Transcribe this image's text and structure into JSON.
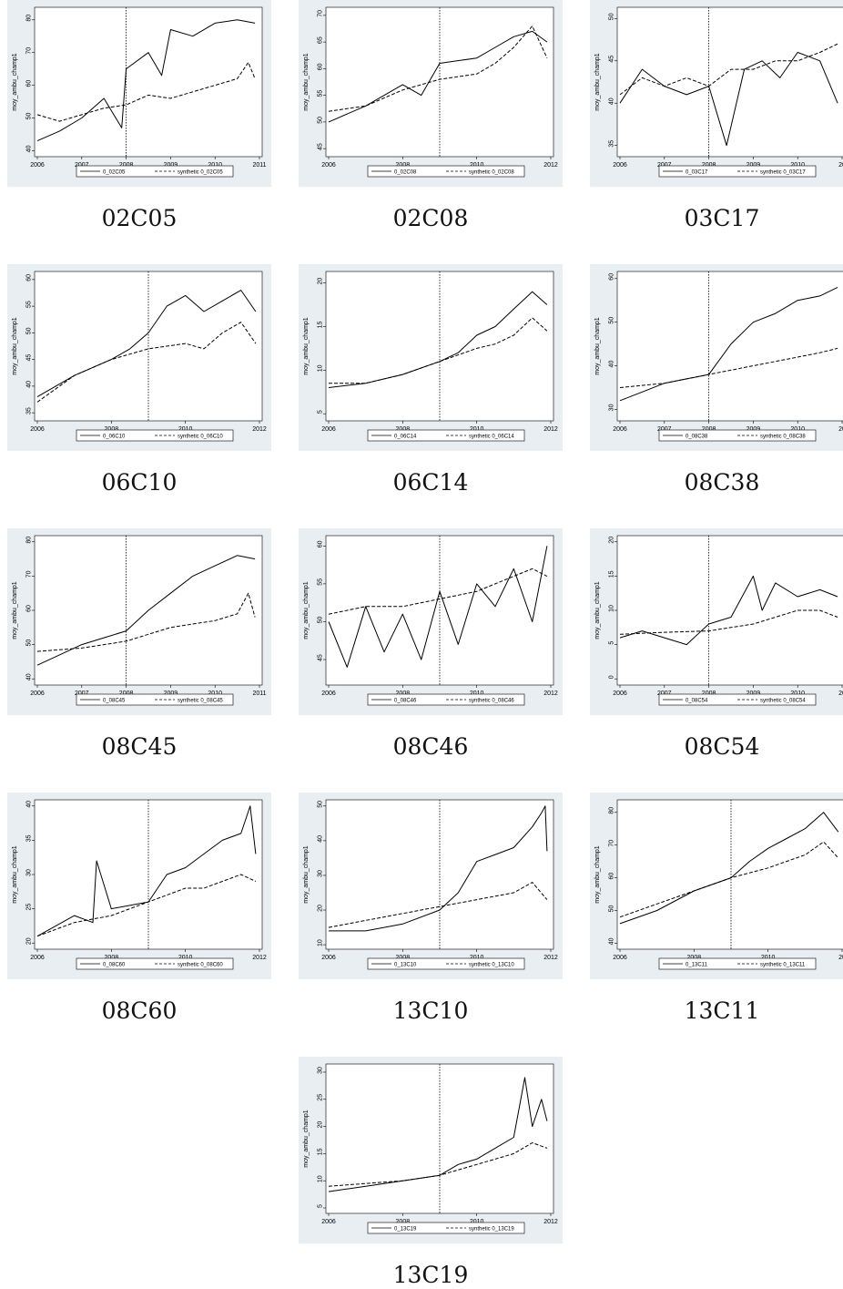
{
  "colors": {
    "panel_bg": "#e8eef2",
    "plot_bg": "#ffffff",
    "line": "#000000"
  },
  "chart_data": [
    {
      "type": "line",
      "caption": "02C05",
      "ylabel": "moy_ambu_champ1",
      "xlim": [
        2006,
        2011
      ],
      "xticks": [
        "2006",
        "2007",
        "2008",
        "2009",
        "2010",
        "2011"
      ],
      "ylim": [
        39,
        83
      ],
      "yticks": [
        "40",
        "50",
        "60",
        "70",
        "80"
      ],
      "intervention": 2008,
      "series": [
        {
          "name": "0_02C05",
          "style": "solid",
          "x": [
            2006,
            2006.5,
            2007,
            2007.5,
            2007.9,
            2008.0,
            2008.5,
            2008.8,
            2009.0,
            2009.5,
            2010,
            2010.5,
            2010.9
          ],
          "y": [
            43,
            46,
            50,
            56,
            47,
            65,
            70,
            63,
            77,
            75,
            79,
            80,
            79
          ]
        },
        {
          "name": "synthetic 0_02C05",
          "style": "dash",
          "x": [
            2006,
            2006.5,
            2007,
            2007.5,
            2008,
            2008.5,
            2009,
            2009.5,
            2010,
            2010.5,
            2010.75,
            2010.9
          ],
          "y": [
            51,
            49,
            51,
            53,
            54,
            57,
            56,
            58,
            60,
            62,
            67,
            62
          ]
        }
      ]
    },
    {
      "type": "line",
      "caption": "02C08",
      "ylabel": "moy_ambu_champ1",
      "xlim": [
        2006,
        2012
      ],
      "xticks": [
        "2006",
        "2008",
        "2010",
        "2012"
      ],
      "ylim": [
        44,
        71
      ],
      "yticks": [
        "45",
        "50",
        "55",
        "60",
        "65",
        "70"
      ],
      "intervention": 2009,
      "series": [
        {
          "name": "0_02C08",
          "style": "solid",
          "x": [
            2006,
            2007,
            2008,
            2008.5,
            2009,
            2010,
            2010.5,
            2011,
            2011.5,
            2011.9
          ],
          "y": [
            50,
            53,
            57,
            55,
            61,
            62,
            64,
            66,
            67,
            65
          ]
        },
        {
          "name": "synthetic 0_02C08",
          "style": "dash",
          "x": [
            2006,
            2007,
            2008,
            2009,
            2010,
            2010.5,
            2011,
            2011.5,
            2011.9
          ],
          "y": [
            52,
            53,
            56,
            58,
            59,
            61,
            64,
            68,
            62
          ]
        }
      ]
    },
    {
      "type": "line",
      "caption": "03C17",
      "ylabel": "moy_ambu_champ1",
      "xlim": [
        2006,
        2011
      ],
      "xticks": [
        "2006",
        "2007",
        "2008",
        "2009",
        "2010",
        "20"
      ],
      "ylim": [
        34,
        51
      ],
      "yticks": [
        "35",
        "40",
        "45",
        "50"
      ],
      "intervention": 2008,
      "series": [
        {
          "name": "0_03C17",
          "style": "solid",
          "x": [
            2006,
            2006.5,
            2007,
            2007.5,
            2008,
            2008.4,
            2008.8,
            2009.2,
            2009.6,
            2010,
            2010.5,
            2010.9
          ],
          "y": [
            40,
            44,
            42,
            41,
            42,
            35,
            44,
            45,
            43,
            46,
            45,
            40
          ]
        },
        {
          "name": "synthetic 0_03C17",
          "style": "dash",
          "x": [
            2006,
            2006.5,
            2007,
            2007.5,
            2008,
            2008.5,
            2009,
            2009.5,
            2010,
            2010.5,
            2010.9
          ],
          "y": [
            41,
            43,
            42,
            43,
            42,
            44,
            44,
            45,
            45,
            46,
            47
          ]
        }
      ]
    },
    {
      "type": "line",
      "caption": "06C10",
      "ylabel": "moy_ambu_champ1",
      "xlim": [
        2006,
        2012
      ],
      "xticks": [
        "2006",
        "2008",
        "2010",
        "2012"
      ],
      "ylim": [
        34,
        61
      ],
      "yticks": [
        "35",
        "40",
        "45",
        "50",
        "55",
        "60"
      ],
      "intervention": 2009,
      "series": [
        {
          "name": "0_06C10",
          "style": "solid",
          "x": [
            2006,
            2007,
            2008,
            2008.5,
            2009,
            2009.5,
            2010,
            2010.5,
            2011,
            2011.5,
            2011.9
          ],
          "y": [
            38,
            42,
            45,
            47,
            50,
            55,
            57,
            54,
            56,
            58,
            54
          ]
        },
        {
          "name": "synthetic 0_06C10",
          "style": "dash",
          "x": [
            2006,
            2007,
            2008,
            2009,
            2010,
            2010.5,
            2011,
            2011.5,
            2011.9
          ],
          "y": [
            37,
            42,
            45,
            47,
            48,
            47,
            50,
            52,
            48
          ]
        }
      ]
    },
    {
      "type": "line",
      "caption": "06C14",
      "ylabel": "moy_ambu_champ1",
      "xlim": [
        2006,
        2012
      ],
      "xticks": [
        "2006",
        "2008",
        "2010",
        "2012"
      ],
      "ylim": [
        4.5,
        21
      ],
      "yticks": [
        "5",
        "10",
        "15",
        "20"
      ],
      "intervention": 2009,
      "series": [
        {
          "name": "0_06C14",
          "style": "solid",
          "x": [
            2006,
            2007,
            2008,
            2009,
            2009.5,
            2010,
            2010.5,
            2011,
            2011.5,
            2011.9
          ],
          "y": [
            8,
            8.5,
            9.5,
            11,
            12,
            14,
            15,
            17,
            19,
            17.5
          ]
        },
        {
          "name": "synthetic 0_06C14",
          "style": "dash",
          "x": [
            2006,
            2007,
            2008,
            2009,
            2010,
            2010.5,
            2011,
            2011.5,
            2011.9
          ],
          "y": [
            8.5,
            8.5,
            9.5,
            11,
            12.5,
            13,
            14,
            16,
            14.5
          ]
        }
      ]
    },
    {
      "type": "line",
      "caption": "08C38",
      "ylabel": "moy_ambu_champ1",
      "xlim": [
        2006,
        2011
      ],
      "xticks": [
        "2006",
        "2007",
        "2008",
        "2009",
        "2010",
        "20"
      ],
      "ylim": [
        28,
        61
      ],
      "yticks": [
        "30",
        "40",
        "50",
        "60"
      ],
      "intervention": 2008,
      "series": [
        {
          "name": "0_08C38",
          "style": "solid",
          "x": [
            2006,
            2006.5,
            2007,
            2007.5,
            2008,
            2008.5,
            2009,
            2009.5,
            2010,
            2010.5,
            2010.9
          ],
          "y": [
            32,
            34,
            36,
            37,
            38,
            45,
            50,
            52,
            55,
            56,
            58
          ]
        },
        {
          "name": "synthetic 0_08C38",
          "style": "dash",
          "x": [
            2006,
            2007,
            2008,
            2008.5,
            2009,
            2009.5,
            2010,
            2010.5,
            2010.9
          ],
          "y": [
            35,
            36,
            38,
            39,
            40,
            41,
            42,
            43,
            44
          ]
        }
      ]
    },
    {
      "type": "line",
      "caption": "08C45",
      "ylabel": "moy_ambu_champ1",
      "xlim": [
        2006,
        2011
      ],
      "xticks": [
        "2006",
        "2007",
        "2008",
        "2009",
        "2010",
        "2011"
      ],
      "ylim": [
        39,
        81
      ],
      "yticks": [
        "40",
        "50",
        "60",
        "70",
        "80"
      ],
      "intervention": 2008,
      "series": [
        {
          "name": "0_08C45",
          "style": "solid",
          "x": [
            2006,
            2006.5,
            2007,
            2007.5,
            2008,
            2008.5,
            2009,
            2009.5,
            2010,
            2010.5,
            2010.9
          ],
          "y": [
            44,
            47,
            50,
            52,
            54,
            60,
            65,
            70,
            73,
            76,
            75
          ]
        },
        {
          "name": "synthetic 0_08C45",
          "style": "dash",
          "x": [
            2006,
            2007,
            2008,
            2008.5,
            2009,
            2009.5,
            2010,
            2010.5,
            2010.75,
            2010.9
          ],
          "y": [
            48,
            49,
            51,
            53,
            55,
            56,
            57,
            59,
            65,
            58
          ]
        }
      ]
    },
    {
      "type": "line",
      "caption": "08C46",
      "ylabel": "moy_ambu_champ1",
      "xlim": [
        2006,
        2012
      ],
      "xticks": [
        "2006",
        "2008",
        "2010",
        "2012"
      ],
      "ylim": [
        42,
        61
      ],
      "yticks": [
        "45",
        "50",
        "55",
        "60"
      ],
      "intervention": 2009,
      "series": [
        {
          "name": "0_08C46",
          "style": "solid",
          "x": [
            2006,
            2006.5,
            2007,
            2007.5,
            2008,
            2008.5,
            2009,
            2009.5,
            2010,
            2010.5,
            2011,
            2011.5,
            2011.9
          ],
          "y": [
            50,
            44,
            52,
            46,
            51,
            45,
            54,
            47,
            55,
            52,
            57,
            50,
            60
          ]
        },
        {
          "name": "synthetic 0_08C46",
          "style": "dash",
          "x": [
            2006,
            2007,
            2008,
            2009,
            2010,
            2010.5,
            2011,
            2011.5,
            2011.9
          ],
          "y": [
            51,
            52,
            52,
            53,
            54,
            55,
            56,
            57,
            56
          ]
        }
      ]
    },
    {
      "type": "line",
      "caption": "08C54",
      "ylabel": "moy_ambu_champ1",
      "xlim": [
        2006,
        2011
      ],
      "xticks": [
        "2006",
        "2007",
        "2008",
        "2009",
        "2010",
        "20"
      ],
      "ylim": [
        -0.5,
        20.5
      ],
      "yticks": [
        "0",
        "5",
        "10",
        "15",
        "20"
      ],
      "intervention": 2008,
      "series": [
        {
          "name": "0_08C54",
          "style": "solid",
          "x": [
            2006,
            2006.5,
            2007,
            2007.5,
            2008,
            2008.5,
            2009,
            2009.2,
            2009.5,
            2010,
            2010.5,
            2010.9
          ],
          "y": [
            6,
            7,
            6,
            5,
            8,
            9,
            15,
            10,
            14,
            12,
            13,
            12
          ]
        },
        {
          "name": "synthetic 0_08C54",
          "style": "dash",
          "x": [
            2006,
            2007,
            2008,
            2008.5,
            2009,
            2009.5,
            2010,
            2010.5,
            2010.9
          ],
          "y": [
            6.5,
            6.8,
            7,
            7.5,
            8,
            9,
            10,
            10,
            9
          ]
        }
      ]
    },
    {
      "type": "line",
      "caption": "08C60",
      "ylabel": "moy_ambu_champ1",
      "xlim": [
        2006,
        2012
      ],
      "xticks": [
        "2006",
        "2008",
        "2010",
        "2012"
      ],
      "ylim": [
        19.5,
        40.5
      ],
      "yticks": [
        "20",
        "25",
        "30",
        "35",
        "40"
      ],
      "intervention": 2009,
      "series": [
        {
          "name": "0_08C60",
          "style": "solid",
          "x": [
            2006,
            2007,
            2007.5,
            2007.6,
            2008,
            2009,
            2009.5,
            2010,
            2010.5,
            2011,
            2011.5,
            2011.75,
            2011.9
          ],
          "y": [
            21,
            24,
            23,
            32,
            25,
            26,
            30,
            31,
            33,
            35,
            36,
            40,
            33
          ]
        },
        {
          "name": "synthetic 0_08C60",
          "style": "dash",
          "x": [
            2006,
            2007,
            2008,
            2009,
            2010,
            2010.5,
            2011,
            2011.5,
            2011.9
          ],
          "y": [
            21,
            23,
            24,
            26,
            28,
            28,
            29,
            30,
            29
          ]
        }
      ]
    },
    {
      "type": "line",
      "caption": "13C10",
      "ylabel": "moy_ambu_champ1",
      "xlim": [
        2006,
        2012
      ],
      "xticks": [
        "2006",
        "2008",
        "2010",
        "2012"
      ],
      "ylim": [
        9.5,
        51
      ],
      "yticks": [
        "10",
        "20",
        "30",
        "40",
        "50"
      ],
      "intervention": 2009,
      "series": [
        {
          "name": "0_13C10",
          "style": "solid",
          "x": [
            2006,
            2007,
            2008,
            2009,
            2009.5,
            2010,
            2010.5,
            2011,
            2011.5,
            2011.75,
            2011.85,
            2011.9
          ],
          "y": [
            14,
            14,
            16,
            20,
            25,
            34,
            36,
            38,
            44,
            48,
            50,
            37
          ]
        },
        {
          "name": "synthetic 0_13C10",
          "style": "dash",
          "x": [
            2006,
            2007,
            2008,
            2009,
            2010,
            2010.5,
            2011,
            2011.5,
            2011.9
          ],
          "y": [
            15,
            17,
            19,
            21,
            23,
            24,
            25,
            28,
            23
          ]
        }
      ]
    },
    {
      "type": "line",
      "caption": "13C11",
      "ylabel": "moy_ambu_champ1",
      "xlim": [
        2006,
        2012
      ],
      "xticks": [
        "2006",
        "2008",
        "2010",
        "20"
      ],
      "ylim": [
        39,
        83
      ],
      "yticks": [
        "40",
        "50",
        "60",
        "70",
        "80"
      ],
      "intervention": 2009,
      "series": [
        {
          "name": "0_13C11",
          "style": "solid",
          "x": [
            2006,
            2007,
            2008,
            2009,
            2009.5,
            2010,
            2010.5,
            2011,
            2011.5,
            2011.9
          ],
          "y": [
            46,
            50,
            56,
            60,
            65,
            69,
            72,
            75,
            80,
            74
          ]
        },
        {
          "name": "synthetic 0_13C11",
          "style": "dash",
          "x": [
            2006,
            2007,
            2008,
            2009,
            2010,
            2010.5,
            2011,
            2011.5,
            2011.9
          ],
          "y": [
            48,
            52,
            56,
            60,
            63,
            65,
            67,
            71,
            66
          ]
        }
      ]
    },
    {
      "type": "line",
      "caption": "13C19",
      "ylabel": "moy_ambu_champ1",
      "xlim": [
        2006,
        2012
      ],
      "xticks": [
        "2006",
        "2008",
        "2010",
        "2012"
      ],
      "ylim": [
        4.5,
        31
      ],
      "yticks": [
        "5",
        "10",
        "15",
        "20",
        "25",
        "30"
      ],
      "intervention": 2009,
      "series": [
        {
          "name": "0_13C19",
          "style": "solid",
          "x": [
            2006,
            2007,
            2008,
            2009,
            2009.5,
            2010,
            2010.5,
            2011,
            2011.3,
            2011.5,
            2011.75,
            2011.9
          ],
          "y": [
            8,
            9,
            10,
            11,
            13,
            14,
            16,
            18,
            29,
            20,
            25,
            21
          ]
        },
        {
          "name": "synthetic 0_13C19",
          "style": "dash",
          "x": [
            2006,
            2007,
            2008,
            2009,
            2010,
            2010.5,
            2011,
            2011.5,
            2011.9
          ],
          "y": [
            9,
            9.5,
            10,
            11,
            13,
            14,
            15,
            17,
            16
          ]
        }
      ]
    }
  ]
}
